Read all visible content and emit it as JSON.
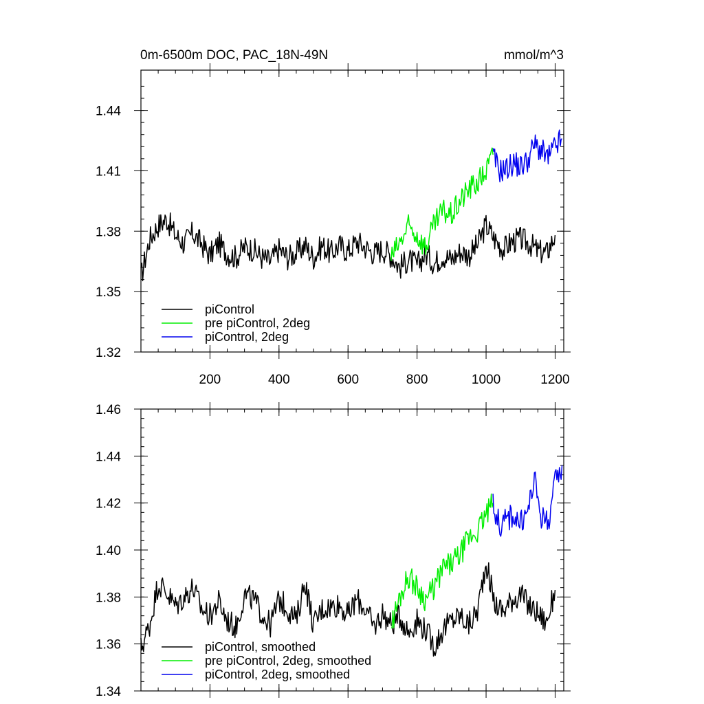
{
  "chart_data": [
    {
      "type": "line",
      "title": "0m-6500m DOC, PAC_18N-49N",
      "units": "mmol/m^3",
      "xlim": [
        0,
        1225
      ],
      "ylim": [
        1.32,
        1.46
      ],
      "xticks": [
        200,
        400,
        600,
        800,
        1000,
        1200
      ],
      "xtick_labels": [
        "200",
        "400",
        "600",
        "800",
        "1000",
        "1200"
      ],
      "yticks": [
        1.32,
        1.35,
        1.38,
        1.41,
        1.44
      ],
      "ytick_labels": [
        "1.32",
        "1.35",
        "1.38",
        "1.41",
        "1.44"
      ],
      "legend_position": "bottom-left",
      "series": [
        {
          "name": "piControl",
          "color": "#000000",
          "x": [
            0,
            25,
            50,
            75,
            100,
            125,
            150,
            175,
            200,
            225,
            250,
            275,
            300,
            325,
            350,
            375,
            400,
            425,
            450,
            475,
            500,
            525,
            550,
            575,
            600,
            625,
            650,
            675,
            700,
            725,
            750,
            775,
            800,
            825,
            850,
            875,
            900,
            925,
            950,
            975,
            1000,
            1025,
            1050,
            1075,
            1100,
            1125,
            1150,
            1175,
            1200
          ],
          "values": [
            1.357,
            1.376,
            1.383,
            1.386,
            1.378,
            1.374,
            1.379,
            1.374,
            1.368,
            1.374,
            1.369,
            1.367,
            1.372,
            1.371,
            1.367,
            1.365,
            1.371,
            1.367,
            1.369,
            1.373,
            1.367,
            1.373,
            1.369,
            1.373,
            1.37,
            1.375,
            1.372,
            1.369,
            1.371,
            1.368,
            1.362,
            1.366,
            1.363,
            1.369,
            1.364,
            1.368,
            1.366,
            1.37,
            1.368,
            1.373,
            1.383,
            1.376,
            1.371,
            1.375,
            1.376,
            1.374,
            1.37,
            1.369,
            1.378
          ]
        },
        {
          "name": "pre piControl, 2deg",
          "color": "#00ee00",
          "x": [
            725,
            750,
            775,
            800,
            825,
            850,
            875,
            900,
            925,
            950,
            975,
            1000,
            1020
          ],
          "values": [
            1.367,
            1.374,
            1.382,
            1.378,
            1.372,
            1.383,
            1.39,
            1.388,
            1.395,
            1.401,
            1.404,
            1.41,
            1.418
          ]
        },
        {
          "name": "piControl, 2deg",
          "color": "#0000ee",
          "x": [
            1020,
            1040,
            1060,
            1080,
            1100,
            1120,
            1140,
            1160,
            1180,
            1200,
            1220
          ],
          "values": [
            1.417,
            1.41,
            1.411,
            1.414,
            1.412,
            1.415,
            1.423,
            1.42,
            1.416,
            1.422,
            1.426
          ]
        }
      ]
    },
    {
      "type": "line",
      "xlim": [
        0,
        1225
      ],
      "ylim": [
        1.34,
        1.46
      ],
      "xticks": [
        200,
        400,
        600,
        800,
        1000,
        1200
      ],
      "yticks": [
        1.34,
        1.36,
        1.38,
        1.4,
        1.42,
        1.44,
        1.46
      ],
      "ytick_labels": [
        "1.34",
        "1.36",
        "1.38",
        "1.40",
        "1.42",
        "1.44",
        "1.46"
      ],
      "legend_position": "bottom-left",
      "series": [
        {
          "name": "piControl, smoothed",
          "color": "#000000",
          "x": [
            0,
            25,
            50,
            75,
            100,
            125,
            150,
            175,
            200,
            225,
            250,
            275,
            300,
            325,
            350,
            375,
            400,
            425,
            450,
            475,
            500,
            525,
            550,
            575,
            600,
            625,
            650,
            675,
            700,
            725,
            750,
            775,
            800,
            825,
            850,
            875,
            900,
            925,
            950,
            975,
            1000,
            1025,
            1050,
            1075,
            1100,
            1125,
            1150,
            1175,
            1200
          ],
          "values": [
            1.358,
            1.368,
            1.386,
            1.382,
            1.376,
            1.38,
            1.384,
            1.375,
            1.372,
            1.378,
            1.37,
            1.367,
            1.381,
            1.379,
            1.373,
            1.368,
            1.379,
            1.375,
            1.37,
            1.387,
            1.368,
            1.375,
            1.376,
            1.377,
            1.372,
            1.379,
            1.375,
            1.367,
            1.373,
            1.368,
            1.372,
            1.365,
            1.37,
            1.366,
            1.359,
            1.366,
            1.37,
            1.372,
            1.368,
            1.374,
            1.395,
            1.377,
            1.374,
            1.379,
            1.381,
            1.376,
            1.373,
            1.369,
            1.383
          ]
        },
        {
          "name": "pre piControl, 2deg, smoothed",
          "color": "#00ee00",
          "x": [
            725,
            750,
            775,
            800,
            825,
            850,
            875,
            900,
            925,
            950,
            975,
            1000,
            1020
          ],
          "values": [
            1.368,
            1.38,
            1.389,
            1.384,
            1.379,
            1.384,
            1.392,
            1.394,
            1.398,
            1.405,
            1.408,
            1.415,
            1.42
          ]
        },
        {
          "name": "piControl, 2deg, smoothed",
          "color": "#0000ee",
          "x": [
            1020,
            1040,
            1060,
            1080,
            1100,
            1120,
            1140,
            1160,
            1180,
            1200,
            1220
          ],
          "values": [
            1.42,
            1.41,
            1.413,
            1.415,
            1.411,
            1.416,
            1.43,
            1.414,
            1.412,
            1.428,
            1.436
          ]
        }
      ]
    }
  ]
}
